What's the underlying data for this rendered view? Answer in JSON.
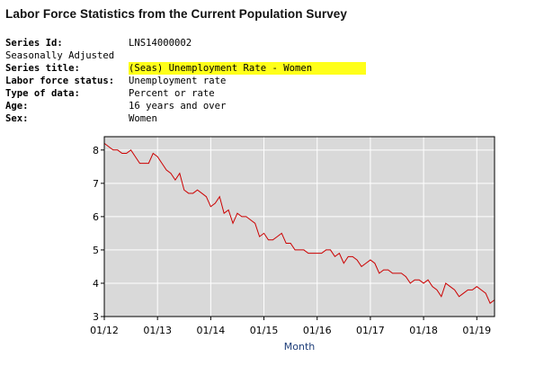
{
  "page": {
    "title": "Labor Force Statistics from the Current Population Survey"
  },
  "series_info": {
    "series_id_label": "Series Id:",
    "series_id": "LNS14000002",
    "adjustment": "Seasonally Adjusted",
    "series_title_label": "Series title:",
    "series_title": "(Seas) Unemployment Rate - Women",
    "labor_force_status_label": "Labor force status:",
    "labor_force_status": "Unemployment rate",
    "type_of_data_label": "Type of data:",
    "type_of_data": "Percent or rate",
    "age_label": "Age:",
    "age": "16 years and over",
    "sex_label": "Sex:",
    "sex": "Women"
  },
  "chart_data": {
    "type": "line",
    "title": "",
    "xlabel": "Month",
    "ylabel": "",
    "ylim": [
      3,
      8.4
    ],
    "xlim": [
      "2012-01",
      "2019-05"
    ],
    "yticks": [
      3,
      4,
      5,
      6,
      7,
      8
    ],
    "xticks": [
      "01/12",
      "01/13",
      "01/14",
      "01/15",
      "01/16",
      "01/17",
      "01/18",
      "01/19"
    ],
    "grid": true,
    "colors": {
      "line": "#cc0000",
      "plot_bg": "#d9d9d9",
      "grid": "#ffffff"
    },
    "series": [
      {
        "x": [
          "2012-01",
          "2012-02",
          "2012-03",
          "2012-04",
          "2012-05",
          "2012-06",
          "2012-07",
          "2012-08",
          "2012-09",
          "2012-10",
          "2012-11",
          "2012-12",
          "2013-01",
          "2013-02",
          "2013-03",
          "2013-04",
          "2013-05",
          "2013-06",
          "2013-07",
          "2013-08",
          "2013-09",
          "2013-10",
          "2013-11",
          "2013-12",
          "2014-01",
          "2014-02",
          "2014-03",
          "2014-04",
          "2014-05",
          "2014-06",
          "2014-07",
          "2014-08",
          "2014-09",
          "2014-10",
          "2014-11",
          "2014-12",
          "2015-01",
          "2015-02",
          "2015-03",
          "2015-04",
          "2015-05",
          "2015-06",
          "2015-07",
          "2015-08",
          "2015-09",
          "2015-10",
          "2015-11",
          "2015-12",
          "2016-01",
          "2016-02",
          "2016-03",
          "2016-04",
          "2016-05",
          "2016-06",
          "2016-07",
          "2016-08",
          "2016-09",
          "2016-10",
          "2016-11",
          "2016-12",
          "2017-01",
          "2017-02",
          "2017-03",
          "2017-04",
          "2017-05",
          "2017-06",
          "2017-07",
          "2017-08",
          "2017-09",
          "2017-10",
          "2017-11",
          "2017-12",
          "2018-01",
          "2018-02",
          "2018-03",
          "2018-04",
          "2018-05",
          "2018-06",
          "2018-07",
          "2018-08",
          "2018-09",
          "2018-10",
          "2018-11",
          "2018-12",
          "2019-01",
          "2019-02",
          "2019-03",
          "2019-04",
          "2019-05"
        ],
        "values": [
          8.2,
          8.1,
          8.0,
          8.0,
          7.9,
          7.9,
          8.0,
          7.8,
          7.6,
          7.6,
          7.6,
          7.9,
          7.8,
          7.6,
          7.4,
          7.3,
          7.1,
          7.3,
          6.8,
          6.7,
          6.7,
          6.8,
          6.7,
          6.6,
          6.3,
          6.4,
          6.6,
          6.1,
          6.2,
          5.8,
          6.1,
          6.0,
          6.0,
          5.9,
          5.8,
          5.4,
          5.5,
          5.3,
          5.3,
          5.4,
          5.5,
          5.2,
          5.2,
          5.0,
          5.0,
          5.0,
          4.9,
          4.9,
          4.9,
          4.9,
          5.0,
          5.0,
          4.8,
          4.9,
          4.6,
          4.8,
          4.8,
          4.7,
          4.5,
          4.6,
          4.7,
          4.6,
          4.3,
          4.4,
          4.4,
          4.3,
          4.3,
          4.3,
          4.2,
          4.0,
          4.1,
          4.1,
          4.0,
          4.1,
          3.9,
          3.8,
          3.6,
          4.0,
          3.9,
          3.8,
          3.6,
          3.7,
          3.8,
          3.8,
          3.9,
          3.8,
          3.7,
          3.4,
          3.5
        ]
      }
    ]
  }
}
